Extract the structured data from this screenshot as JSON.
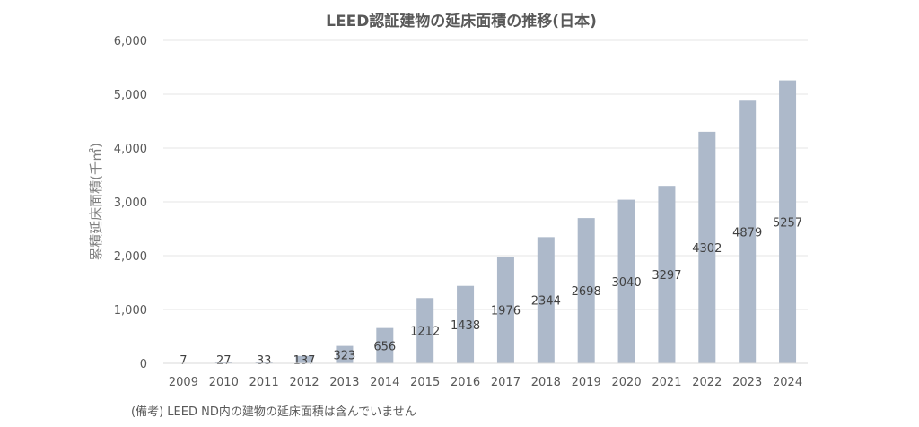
{
  "chart_data": {
    "type": "bar",
    "title": "LEED認証建物の延床面積の推移(日本)",
    "ylabel": "累積延床面積(千㎡)",
    "xlabel": "",
    "categories": [
      "2009",
      "2010",
      "2011",
      "2012",
      "2013",
      "2014",
      "2015",
      "2016",
      "2017",
      "2018",
      "2019",
      "2020",
      "2021",
      "2022",
      "2023",
      "2024"
    ],
    "values": [
      7,
      27,
      33,
      137,
      323,
      656,
      1212,
      1438,
      1976,
      2344,
      2698,
      3040,
      3297,
      4302,
      4879,
      5257
    ],
    "ylim": [
      0,
      6000
    ],
    "yticks": [
      "0",
      "1,000",
      "2,000",
      "3,000",
      "4,000",
      "5,000",
      "6,000"
    ],
    "bar_color": "#adb9ca",
    "grid": true,
    "legend": "none"
  },
  "footnote": "(備考) LEED ND内の建物の延床面積は含んでいません"
}
